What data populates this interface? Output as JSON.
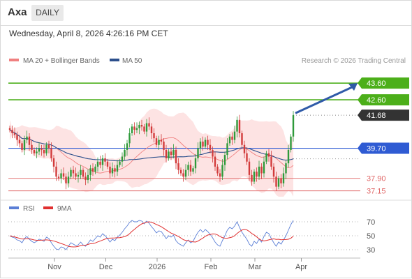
{
  "header": {
    "ticker": "Axa",
    "timeframe": "DAILY"
  },
  "datetime": "Wednesday, April 8, 2026 4:26:16 PM CET",
  "legend": {
    "ma20_label": "MA 20 + Bollinger Bands",
    "ma50_label": "MA 50",
    "ma20_color": "#f08080",
    "ma50_color": "#2c4f8c",
    "credit": "Research © 2026 Trading Central"
  },
  "rsi_legend": {
    "rsi_label": "RSI",
    "ma_label": "9MA",
    "rsi_color": "#5b7fd6",
    "ma_color": "#e03030"
  },
  "colors": {
    "up": "#2e9a3a",
    "down": "#d23b3b",
    "resistance": "#4caf1a",
    "pivot": "#2f5bd3",
    "support": "#e06666",
    "last": "#333333",
    "band": "#fde3e3"
  },
  "chart_data": {
    "type": "candlestick",
    "ylim": [
      36.8,
      44.4
    ],
    "n_bars": 117,
    "x_tick_labels": [
      {
        "label": "Nov",
        "bar": 18
      },
      {
        "label": "Dec",
        "bar": 39
      },
      {
        "label": "2026",
        "bar": 60
      },
      {
        "label": "Feb",
        "bar": 82
      },
      {
        "label": "Mar",
        "bar": 100
      },
      {
        "label": "Apr",
        "bar": 119
      }
    ],
    "levels": [
      {
        "value": 43.6,
        "label": "43.60",
        "type": "resistance"
      },
      {
        "value": 42.6,
        "label": "42.60",
        "type": "resistance"
      },
      {
        "value": 41.68,
        "label": "41.68",
        "type": "last"
      },
      {
        "value": 39.7,
        "label": "39.70",
        "type": "pivot"
      },
      {
        "value": 37.9,
        "label": "37.90",
        "type": "support"
      },
      {
        "value": 37.15,
        "label": "37.15",
        "type": "support"
      }
    ],
    "target_arrow": {
      "from": 41.8,
      "to": 43.6
    },
    "closes": [
      40.8,
      40.6,
      40.5,
      40.2,
      40.0,
      39.6,
      40.2,
      40.4,
      39.9,
      39.6,
      39.4,
      39.5,
      39.7,
      39.6,
      39.4,
      39.9,
      39.7,
      39.1,
      38.6,
      38.0,
      37.9,
      38.2,
      38.0,
      37.6,
      38.0,
      38.4,
      38.2,
      38.0,
      38.1,
      38.4,
      38.0,
      37.8,
      38.1,
      38.5,
      38.3,
      38.6,
      38.9,
      38.7,
      39.1,
      38.9,
      38.6,
      38.2,
      38.5,
      38.3,
      38.7,
      38.9,
      39.2,
      39.6,
      40.0,
      40.6,
      41.0,
      40.8,
      40.9,
      41.1,
      41.0,
      40.7,
      41.2,
      41.0,
      40.6,
      40.3,
      39.9,
      40.2,
      40.1,
      39.6,
      39.1,
      39.5,
      39.3,
      39.6,
      38.8,
      38.4,
      38.2,
      38.0,
      38.4,
      38.7,
      38.3,
      38.5,
      39.1,
      39.7,
      40.1,
      39.8,
      40.2,
      39.9,
      39.6,
      39.2,
      38.6,
      38.2,
      38.0,
      38.7,
      39.3,
      40.0,
      40.4,
      40.2,
      40.7,
      41.4,
      40.6,
      39.9,
      39.4,
      38.9,
      38.1,
      37.7,
      38.3,
      38.0,
      38.6,
      38.2,
      38.9,
      39.4,
      39.2,
      38.6,
      38.0,
      37.4,
      37.9,
      37.6,
      38.2,
      38.8,
      39.6,
      40.4,
      41.68
    ],
    "rsi": [
      50,
      48,
      47,
      44,
      43,
      40,
      46,
      49,
      45,
      42,
      40,
      42,
      45,
      44,
      42,
      48,
      46,
      40,
      35,
      31,
      30,
      34,
      33,
      30,
      35,
      40,
      38,
      36,
      37,
      41,
      37,
      35,
      39,
      44,
      42,
      46,
      50,
      48,
      53,
      50,
      46,
      41,
      45,
      43,
      48,
      51,
      55,
      60,
      64,
      69,
      72,
      70,
      70,
      72,
      71,
      67,
      71,
      68,
      63,
      59,
      54,
      57,
      56,
      51,
      46,
      50,
      48,
      51,
      43,
      39,
      37,
      35,
      40,
      44,
      40,
      42,
      49,
      55,
      59,
      55,
      59,
      56,
      52,
      47,
      41,
      37,
      35,
      43,
      50,
      58,
      62,
      60,
      64,
      70,
      62,
      55,
      50,
      45,
      38,
      35,
      42,
      39,
      45,
      41,
      49,
      55,
      53,
      46,
      40,
      35,
      41,
      38,
      44,
      50,
      58,
      66,
      72
    ],
    "rsi_ticks": [
      70,
      50,
      30
    ],
    "rsi_ylim": [
      22,
      78
    ]
  }
}
